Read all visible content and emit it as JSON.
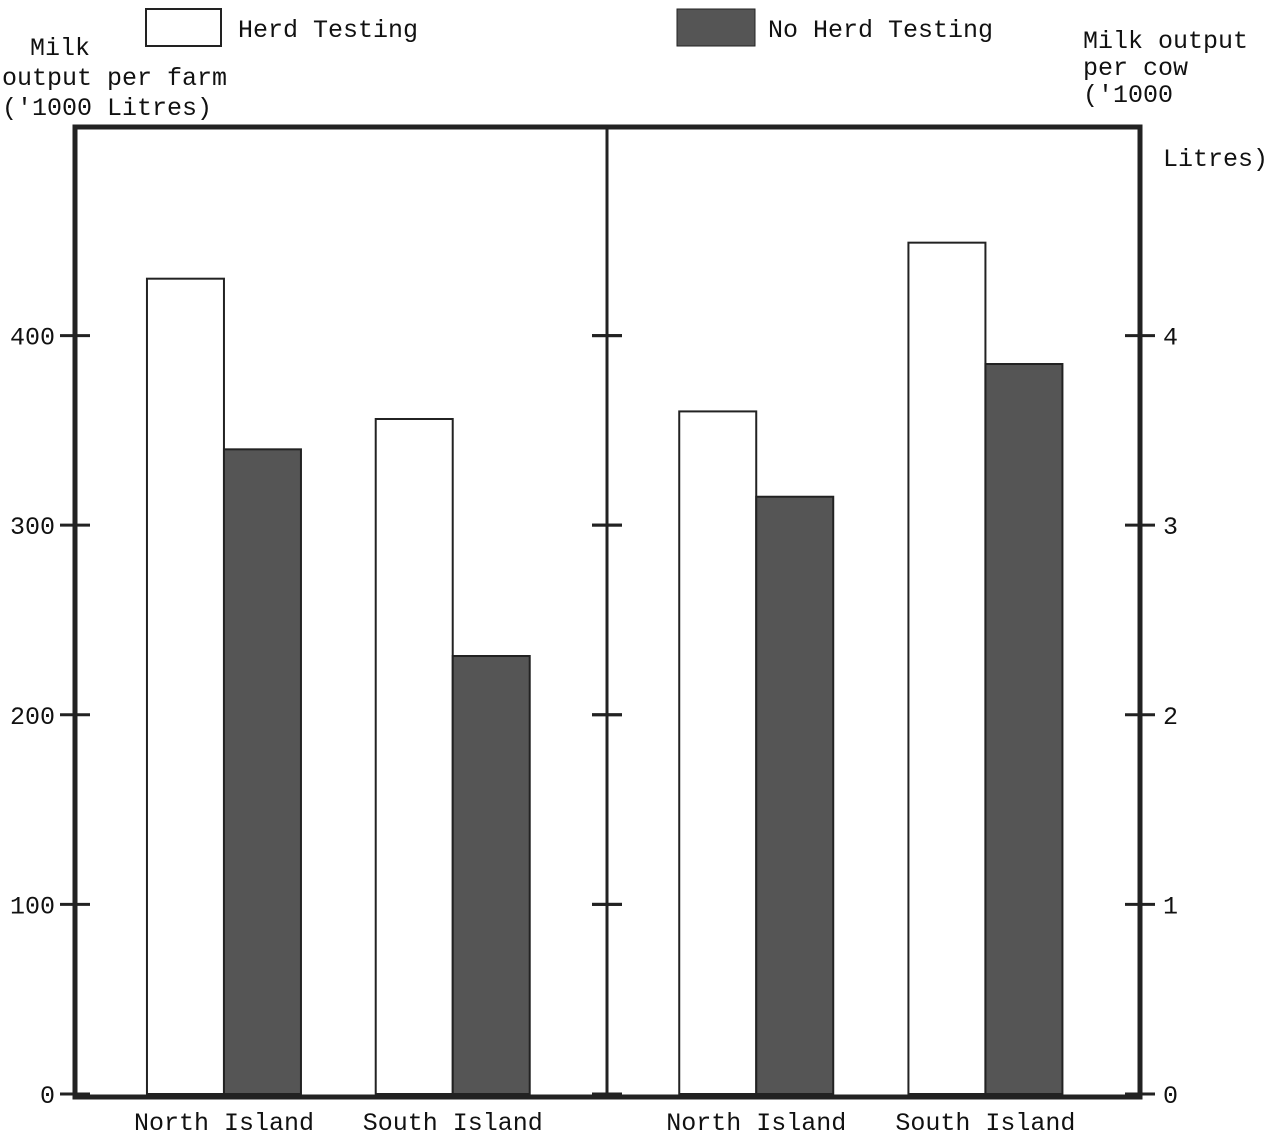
{
  "chart_data": [
    {
      "type": "bar",
      "ylabel": [
        "Milk",
        "output per farm",
        "('1000 Litres)"
      ],
      "axis_side": "left",
      "categories": [
        "North Island",
        "South Island"
      ],
      "series": [
        {
          "name": "Herd Testing",
          "color": "#ffffff",
          "values": [
            430,
            356
          ]
        },
        {
          "name": "No Herd Testing",
          "color": "#555555",
          "values": [
            340,
            231
          ]
        }
      ],
      "ylim": [
        0,
        510
      ],
      "yticks": [
        0,
        100,
        200,
        300,
        400
      ],
      "grid": false
    },
    {
      "type": "bar",
      "ylabel": [
        "Milk output",
        "per cow",
        "('1000",
        "Litres)"
      ],
      "axis_side": "right",
      "categories": [
        "North Island",
        "South Island"
      ],
      "series": [
        {
          "color": "#ffffff",
          "values": [
            3.6,
            4.49
          ]
        },
        {
          "color": "#555555",
          "values": [
            3.15,
            3.85
          ]
        }
      ],
      "ylim": [
        0,
        5.1
      ],
      "yticks": [
        0,
        1,
        2,
        3,
        4
      ],
      "grid": false
    }
  ]
}
